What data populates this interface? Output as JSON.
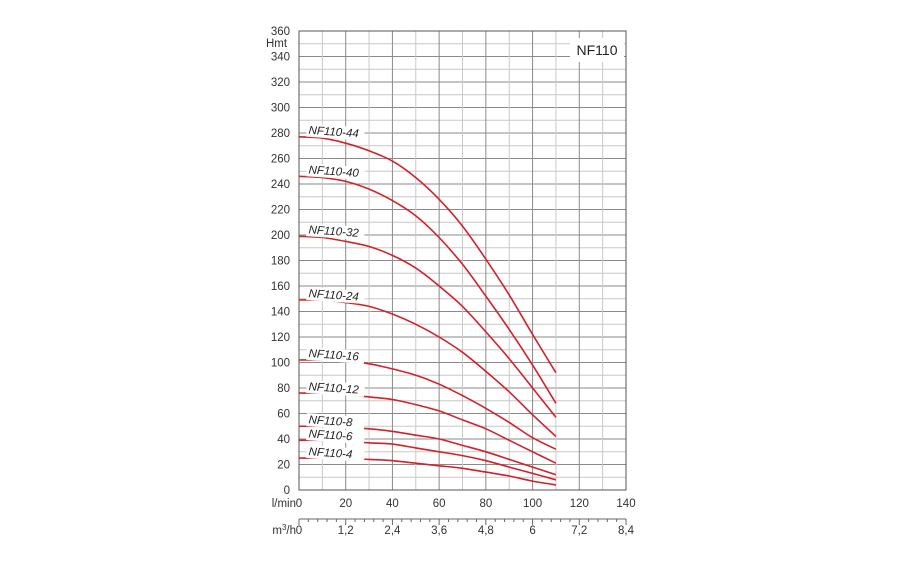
{
  "chart_data": {
    "type": "line",
    "title": "NF110",
    "ylabel": "Hmt",
    "xlabel": "l/min",
    "x2label": "m3/h",
    "xlim": [
      0,
      140
    ],
    "ylim": [
      0,
      360
    ],
    "x_ticks": [
      "0",
      "20",
      "40",
      "60",
      "80",
      "100",
      "120",
      "140"
    ],
    "x2_ticks": [
      "0",
      "1,2",
      "2,4",
      "3,6",
      "4,8",
      "6",
      "7,2",
      "8,4"
    ],
    "y_ticks": [
      "0",
      "20",
      "40",
      "60",
      "80",
      "100",
      "120",
      "140",
      "160",
      "180",
      "200",
      "220",
      "240",
      "260",
      "280",
      "300",
      "320",
      "340",
      "360"
    ],
    "grid": true,
    "line_color": "#d42028",
    "series": [
      {
        "name": "NF110-44",
        "x": [
          0,
          10,
          20,
          30,
          40,
          50,
          60,
          70,
          80,
          90,
          100,
          110
        ],
        "y": [
          277,
          276,
          272,
          266,
          258,
          245,
          228,
          207,
          181,
          153,
          122,
          92
        ]
      },
      {
        "name": "NF110-40",
        "x": [
          0,
          10,
          20,
          30,
          40,
          50,
          60,
          70,
          80,
          90,
          100,
          110
        ],
        "y": [
          246,
          245,
          242,
          236,
          227,
          215,
          198,
          177,
          152,
          126,
          98,
          68
        ]
      },
      {
        "name": "NF110-32",
        "x": [
          0,
          10,
          20,
          30,
          40,
          50,
          60,
          70,
          80,
          90,
          100,
          110
        ],
        "y": [
          199,
          198,
          195,
          191,
          184,
          174,
          160,
          144,
          124,
          103,
          80,
          57
        ]
      },
      {
        "name": "NF110-24",
        "x": [
          0,
          10,
          20,
          30,
          40,
          50,
          60,
          70,
          80,
          90,
          100,
          110
        ],
        "y": [
          149,
          149,
          147,
          144,
          138,
          130,
          120,
          108,
          93,
          77,
          59,
          42
        ]
      },
      {
        "name": "NF110-16",
        "x": [
          0,
          10,
          20,
          30,
          40,
          50,
          60,
          70,
          80,
          90,
          100,
          110
        ],
        "y": [
          102,
          102,
          101,
          99,
          95,
          90,
          83,
          74,
          64,
          53,
          41,
          32
        ]
      },
      {
        "name": "NF110-12",
        "x": [
          0,
          10,
          20,
          30,
          40,
          50,
          60,
          70,
          80,
          90,
          100,
          110
        ],
        "y": [
          76,
          76,
          75,
          73,
          71,
          67,
          62,
          55,
          48,
          39,
          30,
          21
        ]
      },
      {
        "name": "NF110-8",
        "x": [
          0,
          10,
          20,
          30,
          40,
          50,
          60,
          70,
          80,
          90,
          100,
          110
        ],
        "y": [
          50,
          50,
          49,
          48,
          46,
          43,
          40,
          35,
          30,
          24,
          18,
          12
        ]
      },
      {
        "name": "NF110-6",
        "x": [
          0,
          10,
          20,
          30,
          40,
          50,
          60,
          70,
          80,
          90,
          100,
          110
        ],
        "y": [
          39,
          39,
          38,
          37,
          36,
          33,
          30,
          27,
          23,
          18,
          13,
          8
        ]
      },
      {
        "name": "NF110-4",
        "x": [
          0,
          10,
          20,
          30,
          40,
          50,
          60,
          70,
          80,
          90,
          100,
          110
        ],
        "y": [
          25,
          25,
          25,
          24,
          23,
          21,
          19,
          17,
          14,
          11,
          7,
          4
        ]
      }
    ]
  }
}
